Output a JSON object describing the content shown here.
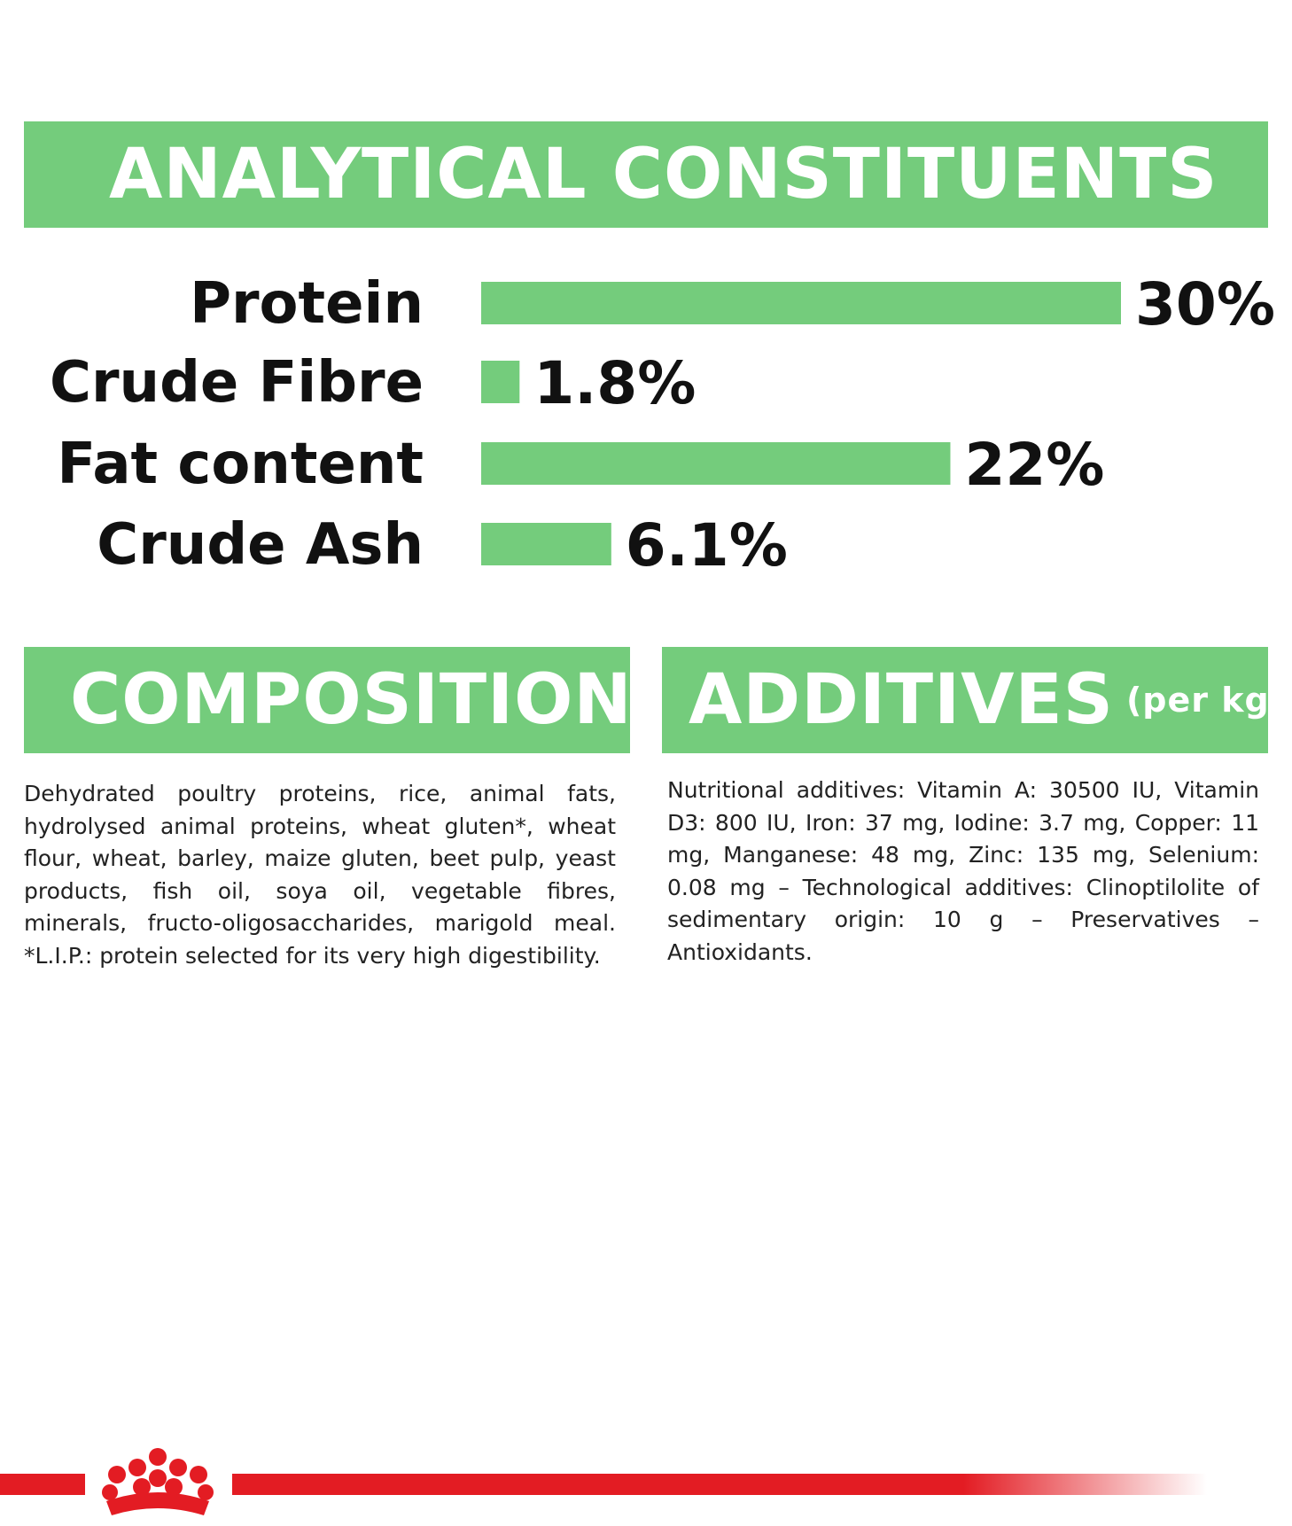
{
  "sections": {
    "analytical_title": "ANALYTICAL CONSTITUENTS",
    "composition_title": "COMPOSITION",
    "additives_title": "ADDITIVES",
    "additives_unit": "(per kg)"
  },
  "chart_data": {
    "type": "bar",
    "orientation": "horizontal",
    "categories": [
      "Protein",
      "Crude Fibre",
      "Fat content",
      "Crude Ash"
    ],
    "values": [
      30,
      1.8,
      22,
      6.1
    ],
    "value_labels": [
      "30%",
      "1.8%",
      "22%",
      "6.1%"
    ],
    "unit": "%",
    "xlim": [
      0,
      30
    ],
    "grid": false,
    "colors": {
      "bar": "#74cc7c",
      "banner": "#74cc7c",
      "text": "#111111"
    }
  },
  "composition_text": "Dehydrated poultry proteins, rice, animal fats, hydrolysed animal proteins, wheat gluten*, wheat flour, wheat, barley, maize gluten, beet pulp, yeast products, fish oil, soya oil, vegetable fibres, minerals, fructo-oligosaccharides, marigold meal. *L.I.P.: protein selected for its very high digestibility.",
  "additives_text": "Nutritional additives: Vitamin A: 30500 IU, Vitamin D3: 800 IU, Iron: 37 mg, Iodine: 3.7 mg, Copper: 11 mg, Manganese: 48 mg, Zinc: 135 mg, Selenium: 0.08 mg – Technological additives: Clinoptilolite of sedimentary origin: 10 g – Preservatives – Antioxidants.",
  "footer": {
    "logo_icon": "crown-icon",
    "brand_color": "#e31c23"
  }
}
